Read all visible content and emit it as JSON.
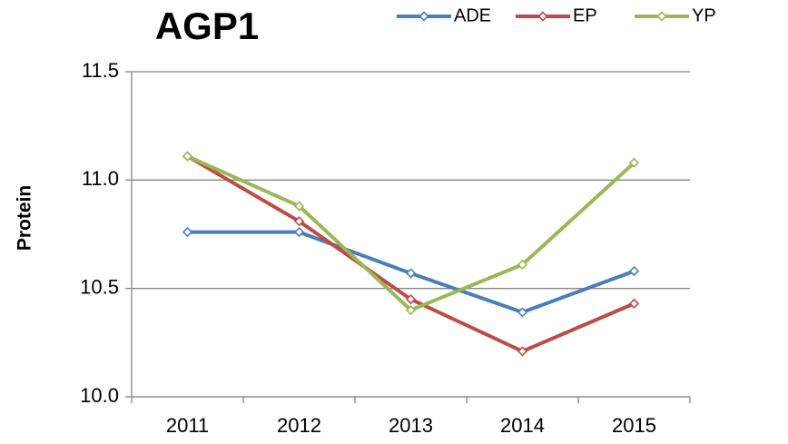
{
  "chart_data": {
    "type": "line",
    "title": "AGP1",
    "y_label": "Protein",
    "categories": [
      "2011",
      "2012",
      "2013",
      "2014",
      "2015"
    ],
    "series": [
      {
        "name": "ADE",
        "color": "#4a7ebb",
        "values": [
          10.76,
          10.76,
          10.57,
          10.39,
          10.58
        ]
      },
      {
        "name": "EP",
        "color": "#be4b48",
        "values": [
          11.11,
          10.81,
          10.45,
          10.21,
          10.43
        ]
      },
      {
        "name": "YP",
        "color": "#98b954",
        "values": [
          11.11,
          10.88,
          10.4,
          10.61,
          11.08
        ]
      }
    ],
    "ylim": [
      10,
      11.5
    ],
    "yticks": [
      {
        "value": 10,
        "label": "10.0"
      },
      10.5,
      {
        "value": 11,
        "label": "11.0"
      },
      11.5
    ],
    "grid": true,
    "legend": "top"
  }
}
